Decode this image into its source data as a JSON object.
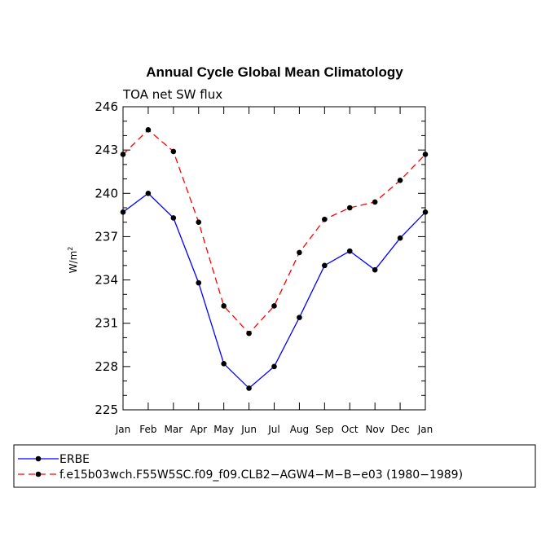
{
  "chart_data": {
    "type": "line",
    "title": "Annual Cycle Global Mean Climatology",
    "subtitle": "TOA net SW flux",
    "ylabel": "W/m",
    "ylabel_superscript": "2",
    "xlabel": "",
    "categories": [
      "Jan",
      "Feb",
      "Mar",
      "Apr",
      "May",
      "Jun",
      "Jul",
      "Aug",
      "Sep",
      "Oct",
      "Nov",
      "Dec",
      "Jan"
    ],
    "ylim": [
      225,
      246
    ],
    "yticks": [
      "225",
      "228",
      "231",
      "234",
      "237",
      "240",
      "243",
      "246"
    ],
    "legend_position": "bottom",
    "series": [
      {
        "name": "ERBE",
        "color": "#0000ff",
        "dash": "solid",
        "values": [
          238.7,
          240.0,
          238.3,
          233.8,
          228.2,
          226.5,
          228.0,
          231.4,
          235.0,
          236.0,
          234.7,
          236.9,
          238.7
        ]
      },
      {
        "name": "f.e15b03wch.F55W5SC.f09_f09.CLB2−AGW4−M−B−e03 (1980−1989)",
        "color": "#ff0000",
        "dash": "dashed",
        "values": [
          242.7,
          244.4,
          242.9,
          238.0,
          232.2,
          230.3,
          232.2,
          235.9,
          238.2,
          239.0,
          239.4,
          240.9,
          242.7
        ]
      }
    ]
  }
}
